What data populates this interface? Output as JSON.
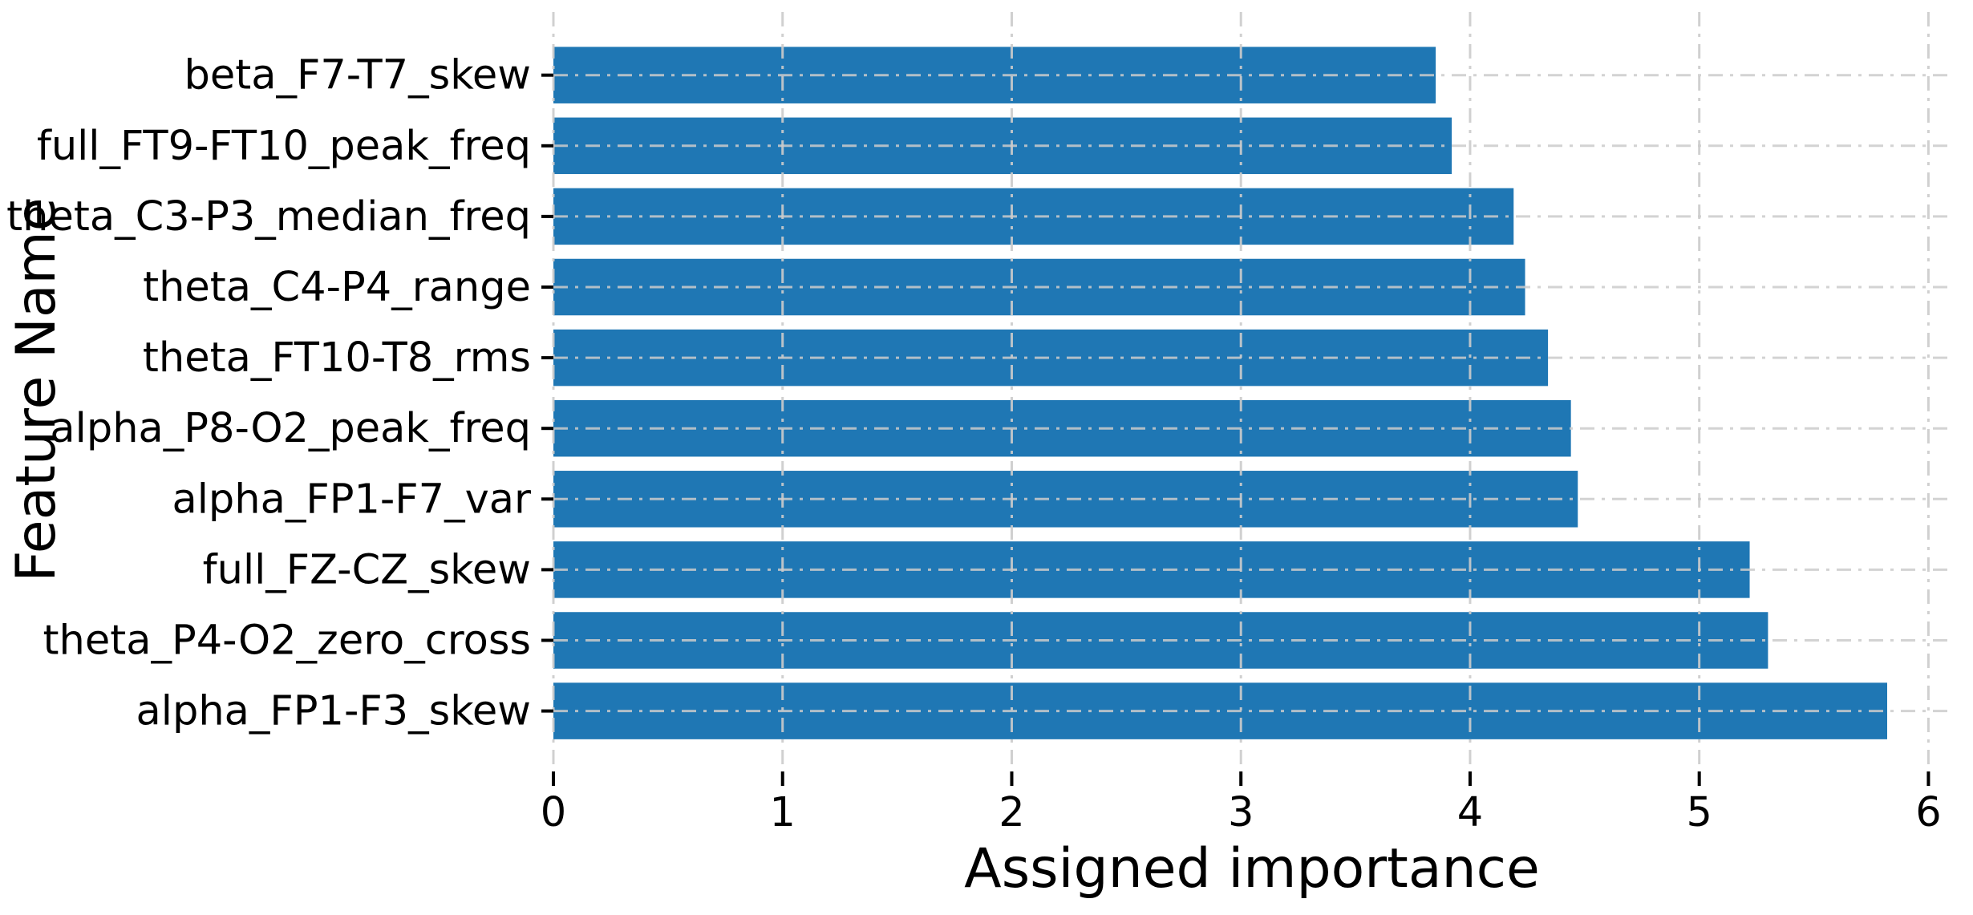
{
  "figure": {
    "background": "#ffffff"
  },
  "chart_data": {
    "type": "bar",
    "orientation": "horizontal",
    "title": "",
    "xlabel": "Assigned importance",
    "ylabel": "Feature Name",
    "categories": [
      "beta_F7-T7_skew",
      "full_FT9-FT10_peak_freq",
      "theta_C3-P3_median_freq",
      "theta_C4-P4_range",
      "theta_FT10-T8_rms",
      "alpha_P8-O2_peak_freq",
      "alpha_FP1-F7_var",
      "full_FZ-CZ_skew",
      "theta_P4-O2_zero_cross",
      "alpha_FP1-F3_skew"
    ],
    "values": [
      3.85,
      3.92,
      4.19,
      4.24,
      4.34,
      4.44,
      4.47,
      5.22,
      5.3,
      5.82
    ],
    "xticks": [
      "0",
      "1",
      "2",
      "3",
      "4",
      "5",
      "6"
    ],
    "xtick_values": [
      0,
      1,
      2,
      3,
      4,
      5,
      6
    ],
    "xlim": [
      0,
      6.1
    ],
    "bar_color": "#1f77b4",
    "grid": {
      "visible": true,
      "style": "dash-dot",
      "color": "#cccccc"
    },
    "tick_color": "#000000",
    "text_color": "#000000",
    "legend": null
  }
}
